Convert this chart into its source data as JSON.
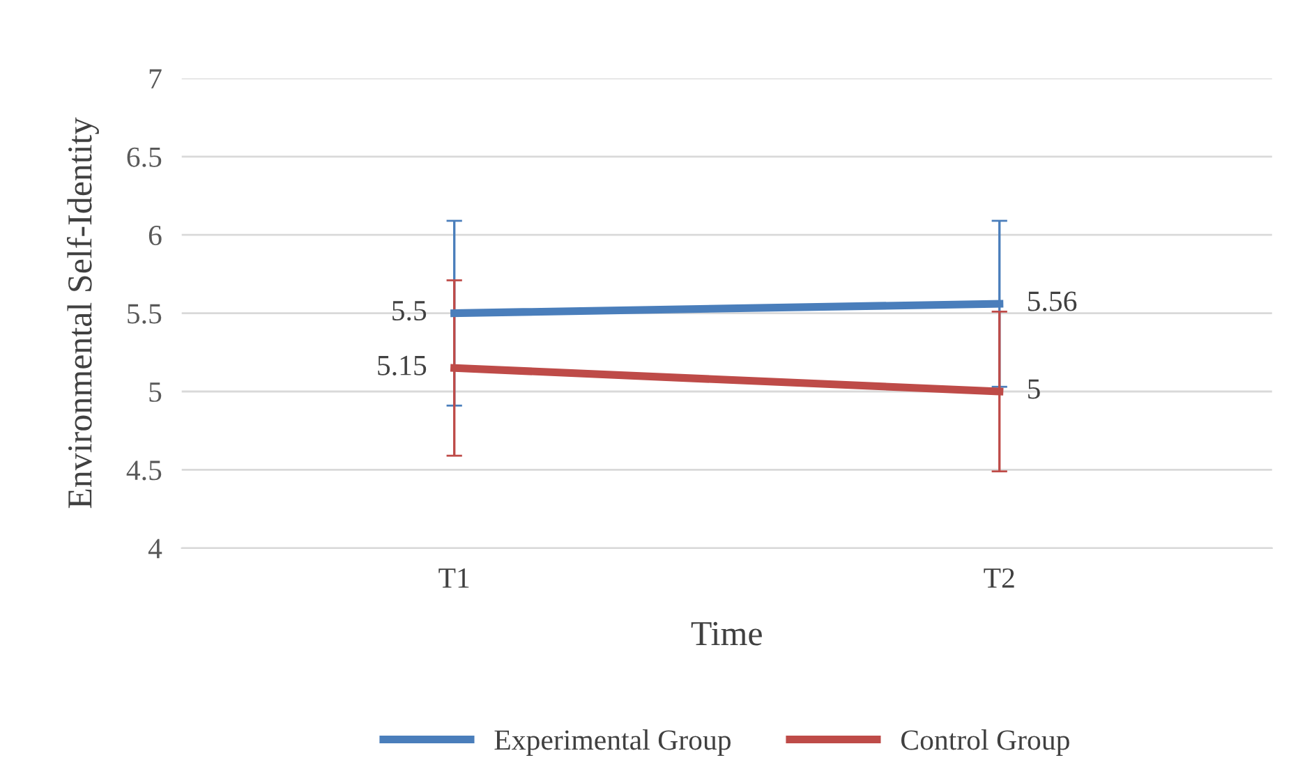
{
  "chart_data": {
    "type": "line",
    "xlabel": "Time",
    "ylabel": "Environmental Self-Identity",
    "categories": [
      "T1",
      "T2"
    ],
    "series": [
      {
        "name": "Experimental Group",
        "color": "#4a7ebb",
        "values": [
          5.5,
          5.56
        ],
        "errors": [
          0.59,
          0.53
        ],
        "value_labels": [
          "5.5",
          "5.56"
        ]
      },
      {
        "name": "Control Group",
        "color": "#be4b48",
        "values": [
          5.15,
          5.0
        ],
        "errors": [
          0.56,
          0.51
        ],
        "value_labels": [
          "5.15",
          "5"
        ]
      }
    ],
    "ylim": [
      4,
      7
    ],
    "yticks": [
      4,
      4.5,
      5,
      5.5,
      6,
      6.5,
      7
    ],
    "grid": "y",
    "legend": "bottom",
    "marker": "none",
    "line_style": "solid"
  }
}
